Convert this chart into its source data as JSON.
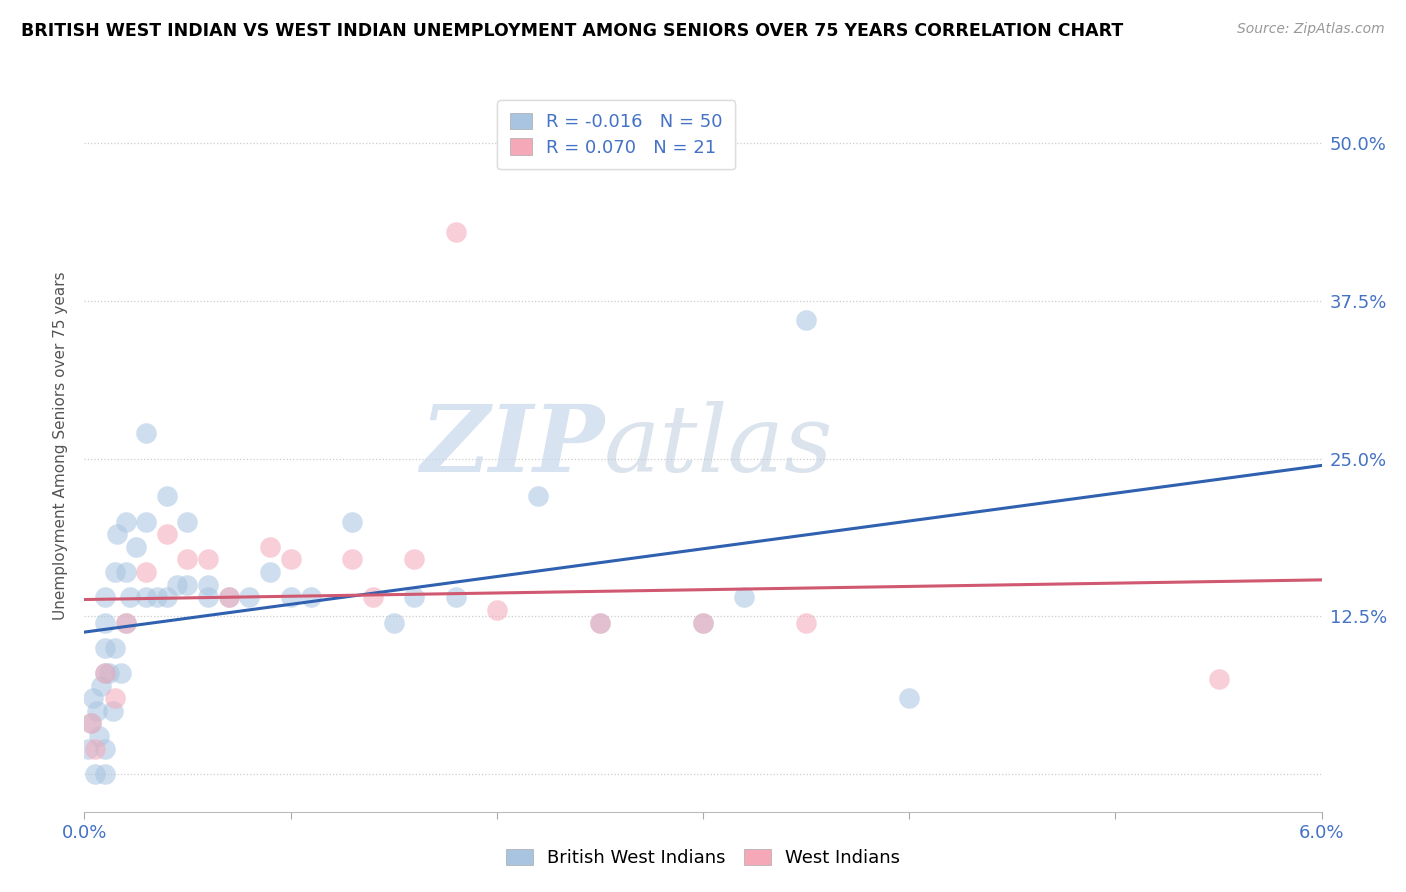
{
  "title": "BRITISH WEST INDIAN VS WEST INDIAN UNEMPLOYMENT AMONG SENIORS OVER 75 YEARS CORRELATION CHART",
  "source": "Source: ZipAtlas.com",
  "ylabel": "Unemployment Among Seniors over 75 years",
  "xlim": [
    0.0,
    0.06
  ],
  "ylim": [
    -0.03,
    0.55
  ],
  "yticks": [
    0.0,
    0.125,
    0.25,
    0.375,
    0.5
  ],
  "ytick_labels": [
    "",
    "12.5%",
    "25.0%",
    "37.5%",
    "50.0%"
  ],
  "xticks": [
    0.0,
    0.01,
    0.02,
    0.03,
    0.04,
    0.05,
    0.06
  ],
  "xtick_labels": [
    "0.0%",
    "",
    "",
    "",
    "",
    "",
    "6.0%"
  ],
  "blue_R": -0.016,
  "blue_N": 50,
  "pink_R": 0.07,
  "pink_N": 21,
  "blue_color": "#a8c4e0",
  "pink_color": "#f4a8b8",
  "blue_line_color": "#3060b0",
  "pink_line_color": "#d05870",
  "watermark_zip": "ZIP",
  "watermark_atlas": "atlas",
  "legend_label_blue": "British West Indians",
  "legend_label_pink": "West Indians",
  "blue_x": [
    0.0002,
    0.0003,
    0.0004,
    0.0005,
    0.0006,
    0.0007,
    0.0008,
    0.001,
    0.001,
    0.001,
    0.001,
    0.001,
    0.001,
    0.0012,
    0.0014,
    0.0015,
    0.0015,
    0.0016,
    0.0018,
    0.002,
    0.002,
    0.002,
    0.0022,
    0.0025,
    0.003,
    0.003,
    0.003,
    0.0035,
    0.004,
    0.004,
    0.0045,
    0.005,
    0.005,
    0.006,
    0.006,
    0.007,
    0.008,
    0.009,
    0.01,
    0.011,
    0.013,
    0.015,
    0.016,
    0.018,
    0.022,
    0.025,
    0.03,
    0.035,
    0.032,
    0.04
  ],
  "blue_y": [
    0.02,
    0.04,
    0.06,
    0.0,
    0.05,
    0.03,
    0.07,
    0.02,
    0.08,
    0.1,
    0.12,
    0.14,
    0.0,
    0.08,
    0.05,
    0.16,
    0.1,
    0.19,
    0.08,
    0.12,
    0.16,
    0.2,
    0.14,
    0.18,
    0.14,
    0.2,
    0.27,
    0.14,
    0.14,
    0.22,
    0.15,
    0.15,
    0.2,
    0.14,
    0.15,
    0.14,
    0.14,
    0.16,
    0.14,
    0.14,
    0.2,
    0.12,
    0.14,
    0.14,
    0.22,
    0.12,
    0.12,
    0.36,
    0.14,
    0.06
  ],
  "pink_x": [
    0.0003,
    0.0005,
    0.001,
    0.0015,
    0.002,
    0.003,
    0.004,
    0.005,
    0.006,
    0.007,
    0.009,
    0.01,
    0.013,
    0.014,
    0.016,
    0.018,
    0.02,
    0.025,
    0.03,
    0.035,
    0.055
  ],
  "pink_y": [
    0.04,
    0.02,
    0.08,
    0.06,
    0.12,
    0.16,
    0.19,
    0.17,
    0.17,
    0.14,
    0.18,
    0.17,
    0.17,
    0.14,
    0.17,
    0.43,
    0.13,
    0.12,
    0.12,
    0.12,
    0.075
  ]
}
